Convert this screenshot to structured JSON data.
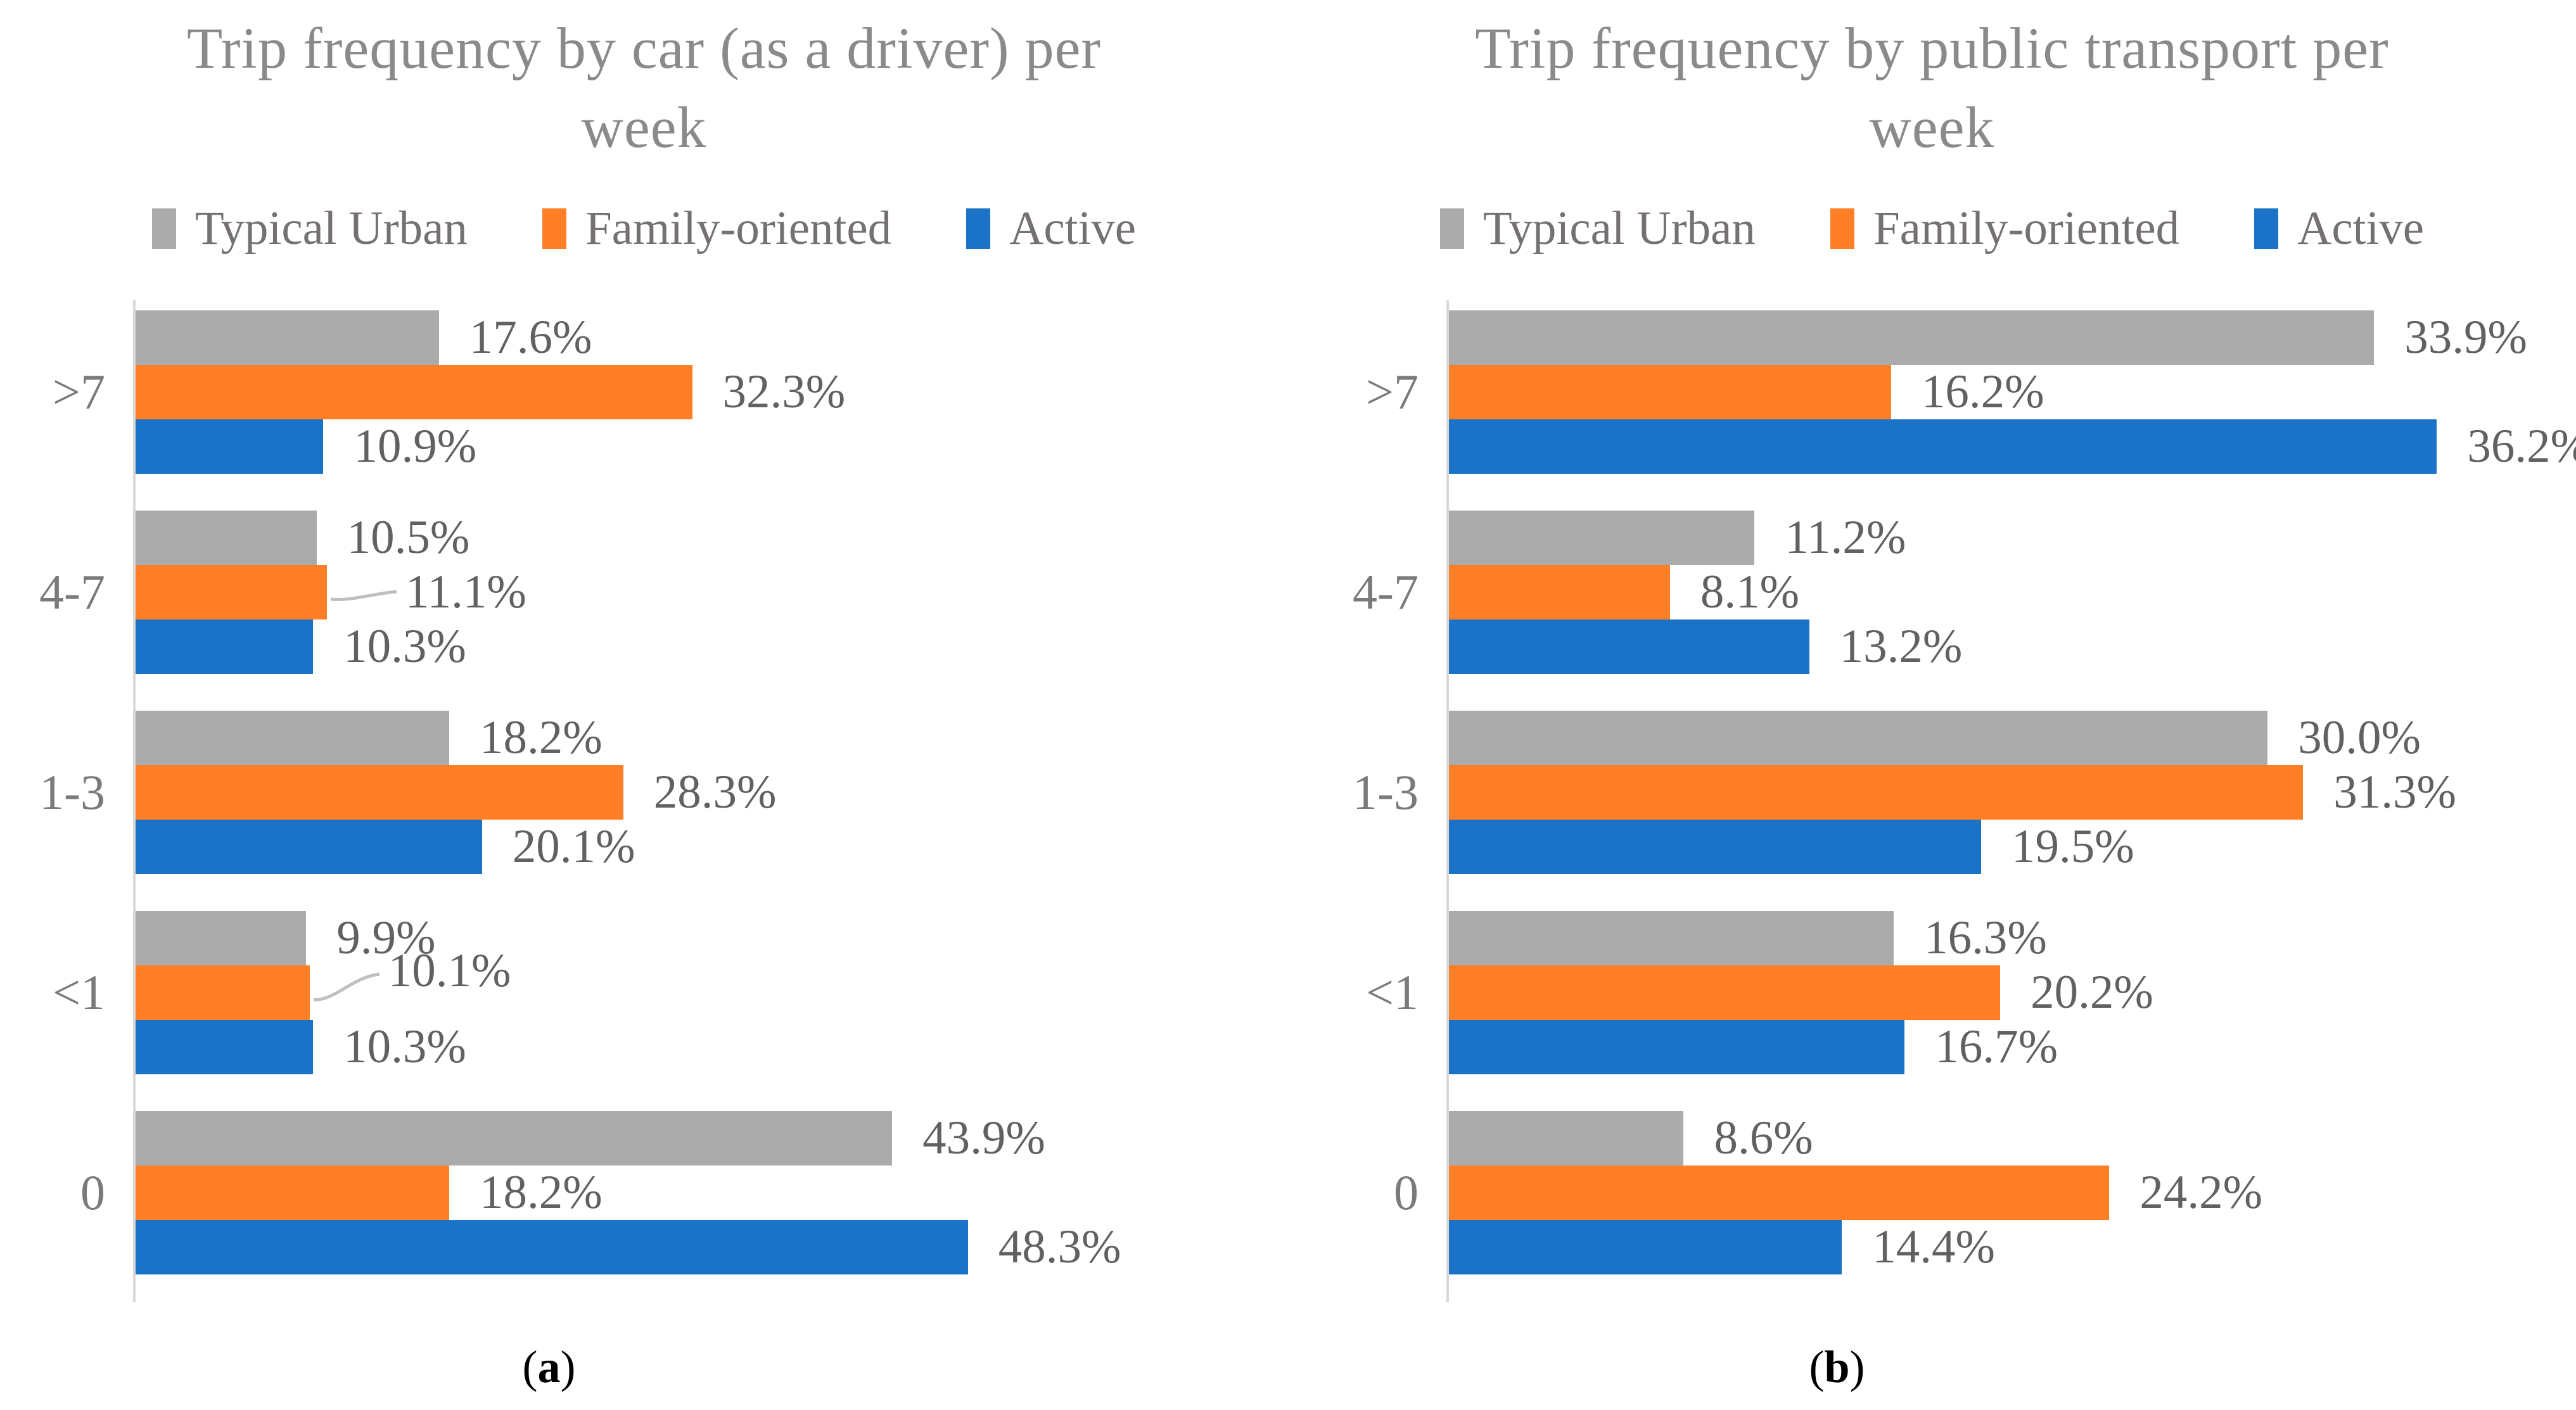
{
  "figure": {
    "caption_open": "(",
    "caption_close": ")"
  },
  "chart_data": [
    {
      "type": "bar",
      "orientation": "horizontal",
      "title": "Trip frequency by car (as a driver) per week",
      "title_lines": [
        "Trip frequency by car (as a driver) per",
        "week"
      ],
      "caption_letter": "a",
      "categories": [
        ">7",
        "4-7",
        "1-3",
        "<1",
        "0"
      ],
      "xlabel": "",
      "ylabel": "",
      "xmax": 65,
      "grid": false,
      "legend_position": "top",
      "value_suffix": "%",
      "data_labels": true,
      "series": [
        {
          "name": "Typical Urban",
          "color": "#ABABAB",
          "values": [
            17.6,
            10.5,
            18.2,
            9.9,
            43.9
          ]
        },
        {
          "name": "Family-oriented",
          "color": "#FF7F27",
          "values": [
            32.3,
            11.1,
            28.3,
            10.1,
            18.2
          ]
        },
        {
          "name": "Active",
          "color": "#1B73C7",
          "values": [
            10.9,
            10.3,
            20.1,
            10.3,
            48.3
          ]
        }
      ],
      "leader_labels": [
        {
          "category": "4-7",
          "series": "Family-oriented",
          "rise": 8
        },
        {
          "category": "<1",
          "series": "Family-oriented",
          "rise": 36
        }
      ],
      "leader_color": "#BFBFBF",
      "axis_color": "#D9D9D9"
    },
    {
      "type": "bar",
      "orientation": "horizontal",
      "title": "Trip frequency by public transport per week",
      "title_lines": [
        "Trip frequency by public transport per",
        "week"
      ],
      "caption_letter": "b",
      "categories": [
        ">7",
        "4-7",
        "1-3",
        "<1",
        "0"
      ],
      "xlabel": "",
      "ylabel": "",
      "xmax": 40,
      "grid": false,
      "legend_position": "top",
      "value_suffix": "%",
      "data_labels": true,
      "series": [
        {
          "name": "Typical Urban",
          "color": "#ABABAB",
          "values": [
            33.9,
            11.2,
            30.0,
            16.3,
            8.6
          ]
        },
        {
          "name": "Family-oriented",
          "color": "#FF7F27",
          "values": [
            16.2,
            8.1,
            31.3,
            20.2,
            24.2
          ]
        },
        {
          "name": "Active",
          "color": "#1B73C7",
          "values": [
            36.2,
            13.2,
            19.5,
            16.7,
            14.4
          ]
        }
      ],
      "leader_labels": [],
      "leader_color": "#BFBFBF",
      "axis_color": "#D9D9D9"
    }
  ]
}
